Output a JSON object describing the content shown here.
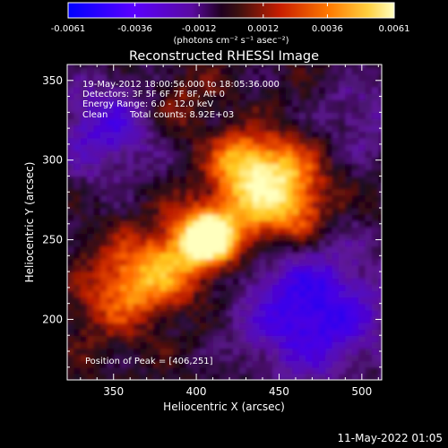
{
  "colorbar": {
    "min": -0.0061,
    "max": 0.0061,
    "tick_labels": [
      "-0.0061",
      "-0.0036",
      "-0.0012",
      "0.0012",
      "0.0036",
      "0.0061"
    ],
    "tick_values": [
      -0.0061,
      -0.0036,
      -0.0012,
      0.0012,
      0.0036,
      0.0061
    ],
    "unit_label": "(photons cm⁻² s⁻¹ asec⁻²)",
    "colors": [
      "#0000ff",
      "#6a00ff",
      "#1a0033",
      "#4a1a1a",
      "#c81e00",
      "#ff6a00",
      "#ffff80"
    ]
  },
  "chart_data": {
    "type": "heatmap",
    "title": "Reconstructed RHESSI Image",
    "xlabel": "Heliocentric X (arcsec)",
    "ylabel": "Heliocentric Y (arcsec)",
    "xlim": [
      322,
      512
    ],
    "ylim": [
      162,
      360
    ],
    "x_ticks": [
      350,
      400,
      450,
      500
    ],
    "y_ticks": [
      200,
      250,
      300,
      350
    ],
    "x_tick_labels": [
      "350",
      "400",
      "450",
      "500"
    ],
    "y_tick_labels": [
      "200",
      "250",
      "300",
      "350"
    ],
    "annotations": [
      "19-May-2012 18:00:56.000 to 18:05:36.000",
      "Detectors: 3F 5F 6F 7F 8F, Att 0",
      "Energy Range: 6.0 - 12.0 keV",
      "Clean",
      "Total counts: 8.92E+03",
      "Position of Peak = [406,251]"
    ],
    "peak_position": [
      406,
      251
    ],
    "value_range": [
      -0.0061,
      0.0061
    ],
    "grid": false
  },
  "footer": {
    "date": "11-May-2022 01:05"
  }
}
